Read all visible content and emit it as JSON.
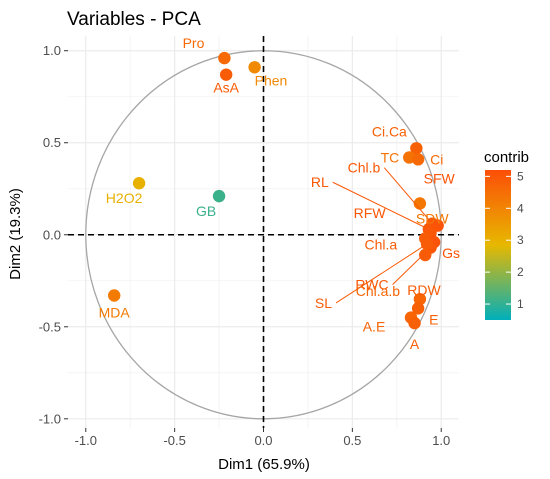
{
  "chart_data": {
    "type": "scatter",
    "title": "Variables - PCA",
    "xlabel": "Dim1 (65.9%)",
    "ylabel": "Dim2 (19.3%)",
    "xlim": [
      -1.1,
      1.1
    ],
    "ylim": [
      -1.05,
      1.08
    ],
    "x_ticks": [
      "-1.0",
      "-0.5",
      "0.0",
      "0.5",
      "1.0"
    ],
    "y_ticks": [
      "-1.0",
      "-0.5",
      "0.0",
      "0.5",
      "1.0"
    ],
    "grid": true,
    "legend": {
      "title": "contrib",
      "placement": "right",
      "ticks": [
        "5",
        "4",
        "3",
        "2",
        "1"
      ],
      "min": 0.5,
      "max": 5.2
    },
    "colors": {
      "low": "#00AFBB",
      "mid": "#E7B800",
      "high": "#FC4E07"
    },
    "series": [
      {
        "label": "Pro",
        "x": -0.22,
        "y": 0.96,
        "contrib": 4.6
      },
      {
        "label": "AsA",
        "x": -0.21,
        "y": 0.87,
        "contrib": 4.9
      },
      {
        "label": "Phen",
        "x": -0.05,
        "y": 0.91,
        "contrib": 3.9
      },
      {
        "label": "Ci.Ca",
        "x": 0.86,
        "y": 0.47,
        "contrib": 4.8
      },
      {
        "label": "TC",
        "x": 0.82,
        "y": 0.42,
        "contrib": 4.4
      },
      {
        "label": "Ci",
        "x": 0.87,
        "y": 0.41,
        "contrib": 4.6
      },
      {
        "label": "H2O2",
        "x": -0.7,
        "y": 0.28,
        "contrib": 3.0
      },
      {
        "label": "GB",
        "x": -0.25,
        "y": 0.21,
        "contrib": 1.1
      },
      {
        "label": "RL",
        "x": 0.93,
        "y": 0.03,
        "contrib": 5.0
      },
      {
        "label": "Chl.b",
        "x": 0.95,
        "y": 0.06,
        "contrib": 5.0
      },
      {
        "label": "SFW",
        "x": 0.98,
        "y": 0.05,
        "contrib": 5.1
      },
      {
        "label": "RFW",
        "x": 0.94,
        "y": 0.01,
        "contrib": 5.0
      },
      {
        "label": "SDW",
        "x": 0.88,
        "y": 0.17,
        "contrib": 4.3
      },
      {
        "label": "Chl.a",
        "x": 0.91,
        "y": -0.02,
        "contrib": 4.9
      },
      {
        "label": "Gs",
        "x": 0.96,
        "y": -0.04,
        "contrib": 5.1
      },
      {
        "label": "RWC",
        "x": 0.94,
        "y": -0.07,
        "contrib": 5.0
      },
      {
        "label": "RDW",
        "x": 0.91,
        "y": -0.11,
        "contrib": 4.9
      },
      {
        "label": "SL",
        "x": 0.92,
        "y": -0.05,
        "contrib": 4.9
      },
      {
        "label": "MDA",
        "x": -0.84,
        "y": -0.33,
        "contrib": 4.2
      },
      {
        "label": "Chl.a.b",
        "x": 0.88,
        "y": -0.35,
        "contrib": 4.7
      },
      {
        "label": "E",
        "x": 0.87,
        "y": -0.4,
        "contrib": 4.8
      },
      {
        "label": "A.E",
        "x": 0.83,
        "y": -0.45,
        "contrib": 4.7
      },
      {
        "label": "A",
        "x": 0.85,
        "y": -0.48,
        "contrib": 4.8
      }
    ]
  }
}
